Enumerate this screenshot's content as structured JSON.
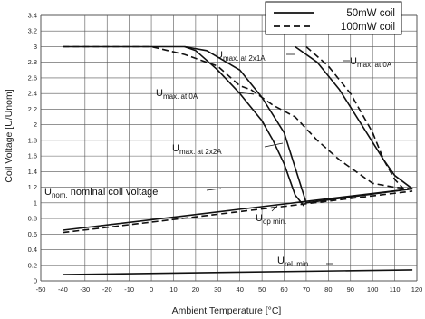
{
  "chart_data": {
    "type": "line",
    "xlabel": "Ambient Temperature [°C]",
    "ylabel": "Coil Voltage [U/Unom]",
    "xlim": [
      -50,
      120
    ],
    "ylim": [
      0,
      3.4
    ],
    "x_ticks": [
      -50,
      -40,
      -30,
      -20,
      -10,
      0,
      10,
      20,
      30,
      40,
      50,
      60,
      70,
      80,
      90,
      100,
      110,
      120
    ],
    "y_ticks": [
      0,
      0.2,
      0.4,
      0.6,
      0.8,
      1,
      1.2,
      1.4,
      1.6,
      1.8,
      2,
      2.2,
      2.4,
      2.6,
      2.8,
      3,
      3.2,
      3.4
    ],
    "grid": true,
    "legend_position": "top-right",
    "series": [
      {
        "name": "50mW coil",
        "key": "umax_2x1a_50",
        "style": "solid",
        "x": [
          -40,
          15,
          25,
          40,
          50,
          60,
          70
        ],
        "y": [
          3,
          3,
          2.95,
          2.7,
          2.35,
          1.9,
          1.0
        ]
      },
      {
        "name": "50mW coil",
        "key": "umax_2x2a_50",
        "style": "solid",
        "x": [
          15,
          20,
          30,
          40,
          50,
          55,
          60,
          65,
          69
        ],
        "y": [
          3,
          2.95,
          2.7,
          2.4,
          2.05,
          1.8,
          1.5,
          1.1,
          0.96
        ]
      },
      {
        "name": "50mW coil",
        "key": "umax_0a_50",
        "style": "solid",
        "x": [
          65,
          75,
          85,
          95,
          105,
          110,
          118
        ],
        "y": [
          3,
          2.8,
          2.45,
          2.0,
          1.55,
          1.35,
          1.18
        ]
      },
      {
        "name": "50mW coil",
        "key": "uop_50",
        "style": "solid",
        "x": [
          -40,
          118
        ],
        "y": [
          0.65,
          1.18
        ]
      },
      {
        "name": "50mW coil",
        "key": "urel_50",
        "style": "solid",
        "x": [
          -40,
          118
        ],
        "y": [
          0.08,
          0.14
        ]
      },
      {
        "name": "50mW coil",
        "key": "hline_50",
        "style": "solid",
        "x": [
          70,
          118
        ],
        "y": [
          1.0,
          1.18
        ]
      },
      {
        "name": "100mW coil",
        "key": "umax_2x1a_100",
        "style": "dashed",
        "x": [
          -40,
          0,
          15,
          25,
          30,
          40,
          45
        ],
        "y": [
          3,
          3,
          2.9,
          2.8,
          2.75,
          2.5,
          2.45
        ]
      },
      {
        "name": "100mW coil",
        "key": "umax_0a_100",
        "style": "dashed",
        "x": [
          45,
          55,
          65,
          75,
          85,
          95,
          100,
          110,
          118
        ],
        "y": [
          2.45,
          2.25,
          2.1,
          1.8,
          1.55,
          1.35,
          1.25,
          1.2,
          1.18
        ]
      },
      {
        "name": "100mW coil",
        "key": "umax_0a_100_right",
        "style": "dashed",
        "x": [
          70,
          80,
          90,
          100,
          105,
          110,
          114
        ],
        "y": [
          3,
          2.75,
          2.4,
          1.9,
          1.55,
          1.3,
          1.18
        ]
      },
      {
        "name": "100mW coil",
        "key": "uop_100",
        "style": "dashed",
        "x": [
          -40,
          118
        ],
        "y": [
          0.62,
          1.15
        ]
      }
    ],
    "legend": [
      {
        "label": "50mW coil",
        "style": "solid"
      },
      {
        "label": "100mW coil",
        "style": "dashed"
      }
    ],
    "annotations": [
      {
        "main": "U",
        "sub": "max. at 2x1A",
        "tail": ""
      },
      {
        "main": "U",
        "sub": "max. at 0A",
        "tail": ""
      },
      {
        "main": "U",
        "sub": "max. at 0A",
        "tail": ""
      },
      {
        "main": "U",
        "sub": "max. at 2x2A",
        "tail": ""
      },
      {
        "main": "U",
        "sub": "nom.",
        "tail": " nominal coil voltage"
      },
      {
        "main": "U",
        "sub": "op min.",
        "tail": ""
      },
      {
        "main": "U",
        "sub": "rel. min.",
        "tail": ""
      }
    ]
  }
}
